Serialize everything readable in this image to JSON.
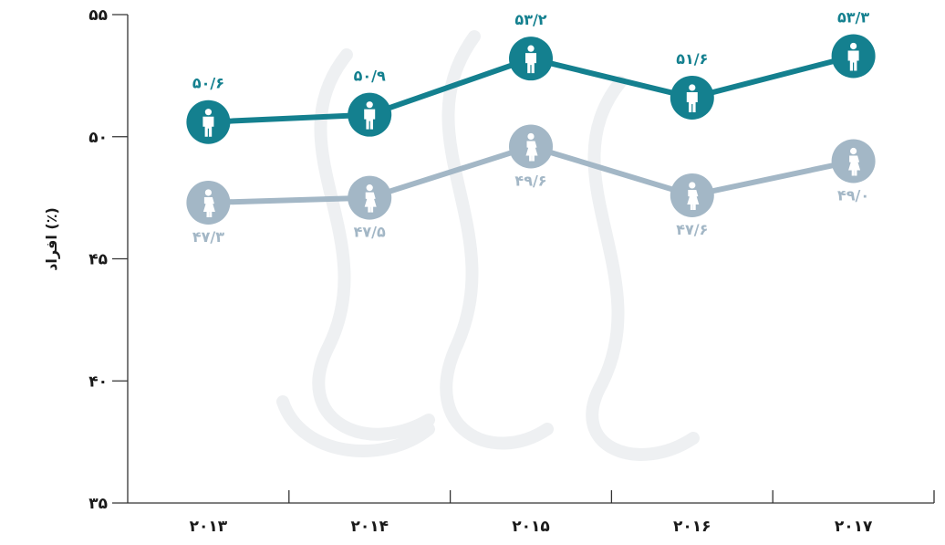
{
  "chart_data": {
    "type": "line",
    "ylabel": "افراد (٪)",
    "ylim": [
      35,
      55
    ],
    "yticks": [
      35,
      40,
      45,
      50,
      55
    ],
    "ytick_labels": [
      "۳۵",
      "۴۰",
      "۴۵",
      "۵۰",
      "۵۵"
    ],
    "categories": [
      "۲۰۱۳",
      "۲۰۱۴",
      "۲۰۱۵",
      "۲۰۱۶",
      "۲۰۱۷"
    ],
    "series": [
      {
        "icon": "man-icon",
        "color": "#14808f",
        "values": [
          50.6,
          50.9,
          53.2,
          51.6,
          53.3
        ],
        "labels": [
          "۵۰/۶",
          "۵۰/۹",
          "۵۳/۲",
          "۵۱/۶",
          "۵۳/۳"
        ],
        "label_position": "above"
      },
      {
        "icon": "woman-icon",
        "color": "#a3b7c6",
        "values": [
          47.3,
          47.5,
          49.6,
          47.6,
          49.0
        ],
        "labels": [
          "۴۷/۳",
          "۴۷/۵",
          "۴۹/۶",
          "۴۷/۶",
          "۴۹/۰"
        ],
        "label_position": "below"
      }
    ],
    "grid": false,
    "legend": "none"
  }
}
